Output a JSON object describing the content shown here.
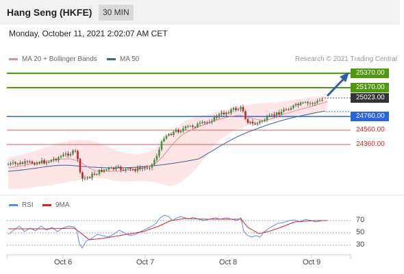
{
  "header": {
    "title": "Hang Seng (HKFE)",
    "timeframe": "30 MIN"
  },
  "datetime": "Monday, October 11, 2021 2:02:07 AM CET",
  "legend": {
    "ma20_label": "MA 20 + Bollinger Bands",
    "ma50_label": "MA 50",
    "ma20_color": "#f08a8a",
    "ma50_color": "#3a5fa0"
  },
  "credit": "Research © 2021 Trading Central",
  "levels": {
    "r2": "25370.00",
    "r1": "25170.00",
    "last": "25023.00",
    "pivot": "24760.00",
    "s1": "24560.00",
    "s2": "24360.00"
  },
  "rsi_legend": {
    "rsi_label": "RSI",
    "ma_label": "9MA",
    "rsi_color": "#5a8be8",
    "ma_color": "#dd2222"
  },
  "rsi_axis": [
    "70",
    "50",
    "30"
  ],
  "x_axis": [
    "Oct 6",
    "Oct 7",
    "Oct 8",
    "Oct 9"
  ],
  "colors": {
    "support": "#e05a5a",
    "resistance": "#4d9a0e",
    "pivot": "#2864e8",
    "candle_up": "#3a9a3a",
    "candle_down": "#cc2222",
    "arrow": "#2b5fa8"
  }
}
